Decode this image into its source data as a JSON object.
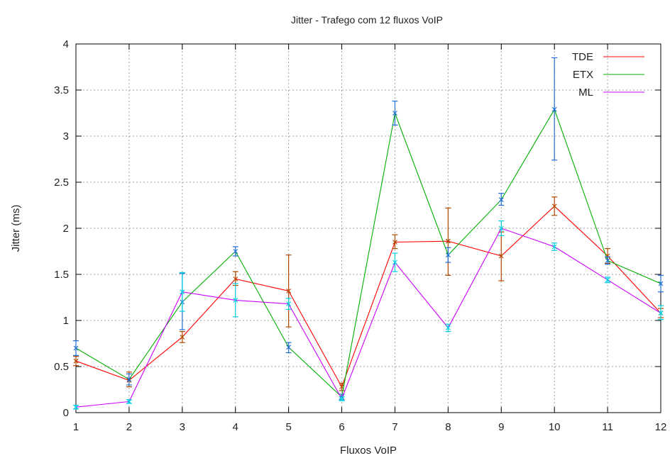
{
  "chart_data": {
    "type": "line",
    "title": "Jitter - Trafego com 12 fluxos VoIP",
    "xlabel": "Fluxos VoIP",
    "ylabel": "Jitter (ms)",
    "xlim": [
      1,
      12
    ],
    "ylim": [
      0,
      4
    ],
    "grid": true,
    "legend_position": "top-right",
    "x": [
      1,
      2,
      3,
      4,
      5,
      6,
      7,
      8,
      9,
      10,
      11,
      12
    ],
    "x_tick_labels": [
      "1",
      "2",
      "3",
      "4",
      "5",
      "6",
      "7",
      "8",
      "9",
      "10",
      "11",
      "12"
    ],
    "y_ticks": [
      0,
      0.5,
      1,
      1.5,
      2,
      2.5,
      3,
      3.5,
      4
    ],
    "y_tick_labels": [
      "0",
      "0.5",
      "1",
      "1.5",
      "2",
      "2.5",
      "3",
      "3.5",
      "4"
    ],
    "series": [
      {
        "name": "TDE",
        "color": "#ff0000",
        "errorbar_color": "#b34700",
        "values": [
          0.56,
          0.35,
          0.82,
          1.45,
          1.32,
          0.28,
          1.85,
          1.86,
          1.7,
          2.24,
          1.7,
          1.08
        ],
        "err_low": [
          0.51,
          0.28,
          0.76,
          1.38,
          0.93,
          0.24,
          1.78,
          1.49,
          1.43,
          2.14,
          1.62,
          1.03
        ],
        "err_high": [
          0.61,
          0.44,
          0.88,
          1.53,
          1.71,
          0.32,
          1.93,
          2.22,
          1.96,
          2.34,
          1.78,
          1.13
        ]
      },
      {
        "name": "ETX",
        "color": "#00b000",
        "errorbar_color": "#1f6fd0",
        "values": [
          0.7,
          0.36,
          1.2,
          1.75,
          0.71,
          0.17,
          3.25,
          1.71,
          2.31,
          3.29,
          1.65,
          1.4
        ],
        "err_low": [
          0.62,
          0.3,
          0.9,
          1.7,
          0.65,
          0.14,
          3.12,
          1.63,
          2.25,
          2.74,
          1.61,
          1.31
        ],
        "err_high": [
          0.78,
          0.42,
          1.51,
          1.8,
          0.76,
          0.2,
          3.38,
          1.79,
          2.38,
          3.85,
          1.69,
          1.49
        ]
      },
      {
        "name": "ML",
        "color": "#cc00ff",
        "errorbar_color": "#00d0e0",
        "values": [
          0.06,
          0.12,
          1.31,
          1.22,
          1.18,
          0.15,
          1.63,
          0.92,
          2.0,
          1.8,
          1.44,
          1.08
        ],
        "err_low": [
          0.04,
          0.1,
          1.1,
          1.04,
          1.12,
          0.13,
          1.53,
          0.88,
          1.92,
          1.76,
          1.41,
          1.01
        ],
        "err_high": [
          0.08,
          0.14,
          1.52,
          1.4,
          1.24,
          0.17,
          1.73,
          0.96,
          2.08,
          1.84,
          1.47,
          1.16
        ]
      }
    ]
  }
}
